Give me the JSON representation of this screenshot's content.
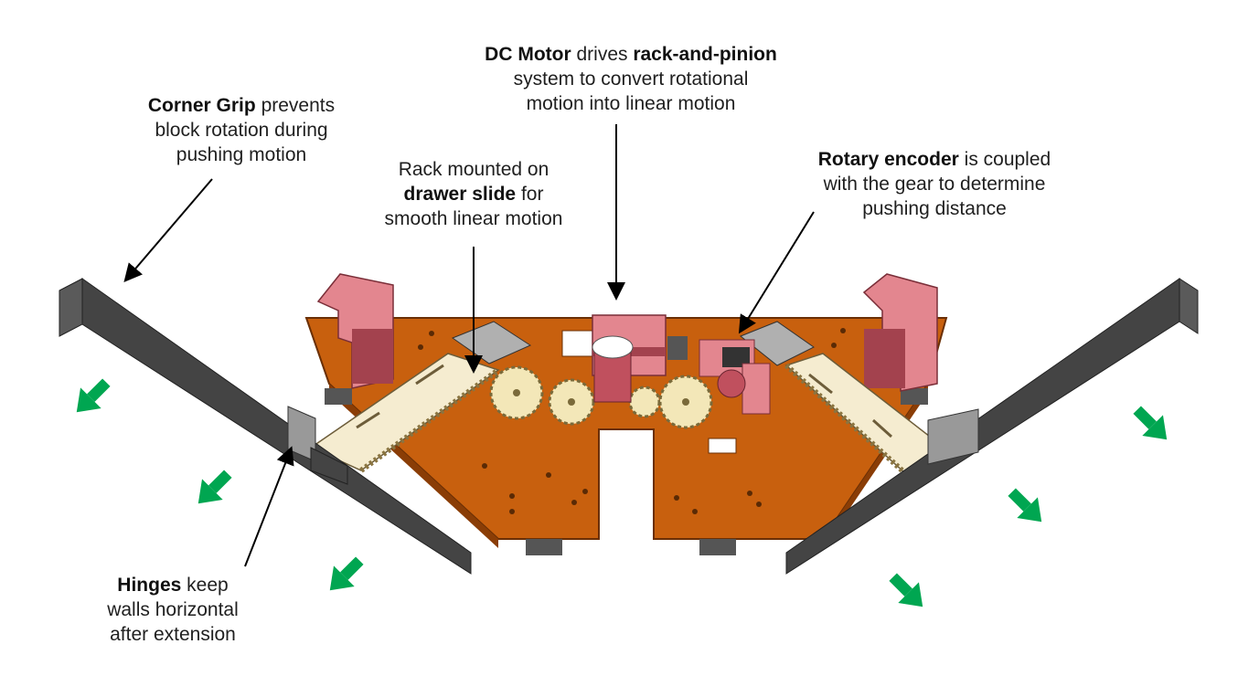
{
  "callouts": {
    "corner_grip": {
      "bold": "Corner Grip",
      "rest1": " prevents",
      "line2": "block rotation during",
      "line3": "pushing motion"
    },
    "rack_slide": {
      "line1": "Rack mounted on",
      "bold": "drawer slide",
      "rest2": " for",
      "line3": "smooth linear motion"
    },
    "dc_motor": {
      "bold1": "DC Motor",
      "mid1": " drives ",
      "bold2": "rack-and-pinion",
      "line2": "system to convert rotational",
      "line3": "motion into linear motion"
    },
    "encoder": {
      "bold": "Rotary encoder",
      "rest1": " is coupled",
      "line2": "with the gear to determine",
      "line3": "pushing distance"
    },
    "hinges": {
      "bold": "Hinges",
      "rest1": " keep",
      "line2": "walls horizontal",
      "line3": "after extension"
    }
  },
  "colors": {
    "base_plate": "#c8600e",
    "base_edge": "#8a3d06",
    "pink_part": "#e3868f",
    "pink_dark": "#a3424e",
    "rack_cream": "#f5ecd0",
    "gear": "#f3e7b8",
    "wall_gray": "#4a4a4a",
    "arrow_green": "#00a651"
  }
}
